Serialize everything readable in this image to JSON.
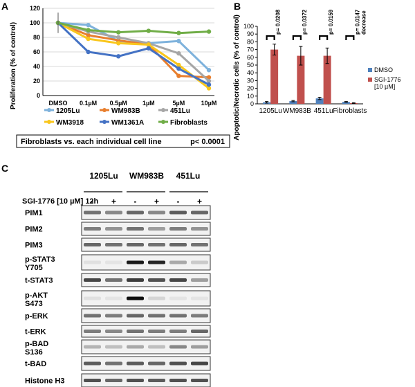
{
  "panel_a": {
    "letter": "A",
    "ylabel": "Proliferation (% of control)",
    "footnote_left": "Fibroblasts vs. each individual cell line",
    "footnote_right": "p< 0.0001",
    "colors": {
      "1205Lu": "#7eb2dc",
      "WM983B": "#e87e2d",
      "451Lu": "#a6a6a6",
      "WM3918": "#f9c61c",
      "WM1361A": "#4472c4",
      "Fibroblasts": "#70ad47"
    }
  },
  "panel_b": {
    "letter": "B",
    "ylabel": "Apoptotic/Necrotic cells (% of control)",
    "pvalues": [
      "p= 0.0208",
      "p= 0.0372",
      "p= 0.0159",
      "p= 0.0147 decrease"
    ],
    "colors": {
      "DMSO": "#4f81bd",
      "SGI": "#c0504d"
    }
  },
  "panel_c": {
    "letter": "C",
    "groups": [
      "1205Lu",
      "WM983B",
      "451Lu"
    ],
    "treatment_label": "SGI-1776 [10 µM] 12h",
    "signs": [
      "-",
      "+",
      "-",
      "+",
      "-",
      "+"
    ],
    "blots": [
      {
        "label1": "PIM1",
        "label2": ""
      },
      {
        "label1": "PIM2",
        "label2": ""
      },
      {
        "label1": "PIM3",
        "label2": ""
      },
      {
        "label1": "p-STAT3",
        "label2": "Y705"
      },
      {
        "label1": "t-STAT3",
        "label2": ""
      },
      {
        "label1": "p-AKT",
        "label2": "S473"
      },
      {
        "label1": "p-ERK",
        "label2": ""
      },
      {
        "label1": "t-ERK",
        "label2": ""
      },
      {
        "label1": "p-BAD",
        "label2": "S136"
      },
      {
        "label1": "t-BAD",
        "label2": ""
      },
      {
        "label1": "Histone H3",
        "label2": ""
      }
    ],
    "intensities": [
      [
        0.55,
        0.45,
        0.6,
        0.45,
        0.65,
        0.6
      ],
      [
        0.5,
        0.4,
        0.55,
        0.35,
        0.5,
        0.4
      ],
      [
        0.6,
        0.55,
        0.6,
        0.55,
        0.6,
        0.55
      ],
      [
        0.05,
        0.03,
        0.95,
        0.9,
        0.3,
        0.15
      ],
      [
        0.75,
        0.55,
        0.8,
        0.7,
        0.75,
        0.35
      ],
      [
        0.05,
        0.03,
        1.0,
        0.1,
        0.03,
        0.03
      ],
      [
        0.55,
        0.5,
        0.6,
        0.55,
        0.55,
        0.5
      ],
      [
        0.5,
        0.45,
        0.55,
        0.5,
        0.5,
        0.6
      ],
      [
        0.25,
        0.2,
        0.3,
        0.2,
        0.45,
        0.35
      ],
      [
        0.65,
        0.55,
        0.65,
        0.6,
        0.7,
        0.75
      ],
      [
        0.7,
        0.6,
        0.7,
        0.65,
        0.7,
        0.7
      ]
    ]
  },
  "chart_data": [
    {
      "type": "line",
      "categories": [
        "DMSO",
        "0.1µM",
        "0.5µM",
        "1µM",
        "5µM",
        "10µM"
      ],
      "ylim": [
        0,
        120
      ],
      "yticks": [
        0,
        20,
        40,
        60,
        80,
        100,
        120
      ],
      "ylabel": "Proliferation (% of control)",
      "legend": "bottom",
      "series": [
        {
          "name": "1205Lu",
          "values": [
            100,
            97,
            75,
            72,
            75,
            35
          ]
        },
        {
          "name": "WM983B",
          "values": [
            100,
            83,
            76,
            70,
            27,
            25
          ]
        },
        {
          "name": "451Lu",
          "values": [
            100,
            88,
            80,
            72,
            58,
            20
          ]
        },
        {
          "name": "WM3918",
          "values": [
            100,
            78,
            72,
            70,
            42,
            10
          ]
        },
        {
          "name": "WM1361A",
          "values": [
            100,
            60,
            54,
            65,
            37,
            15
          ]
        },
        {
          "name": "Fibroblasts",
          "values": [
            100,
            90,
            87,
            89,
            86,
            88
          ]
        }
      ]
    },
    {
      "type": "bar",
      "categories": [
        "1205Lu",
        "WM983B",
        "451Lu",
        "Fibroblasts"
      ],
      "ylim": [
        0,
        100
      ],
      "yticks": [
        0,
        10,
        20,
        30,
        40,
        50,
        60,
        70,
        80,
        90,
        100
      ],
      "ylabel": "Apoptotic/Necrotic cells (% of control)",
      "legend": "right",
      "series": [
        {
          "name": "DMSO",
          "values": [
            2,
            3.5,
            7,
            2.5
          ],
          "err": [
            1,
            0.8,
            1.5,
            0.5
          ]
        },
        {
          "name": "SGI-1776 [10 µM]",
          "values": [
            70,
            62,
            62,
            1
          ],
          "err": [
            7,
            12,
            10,
            0.5
          ]
        }
      ]
    }
  ]
}
